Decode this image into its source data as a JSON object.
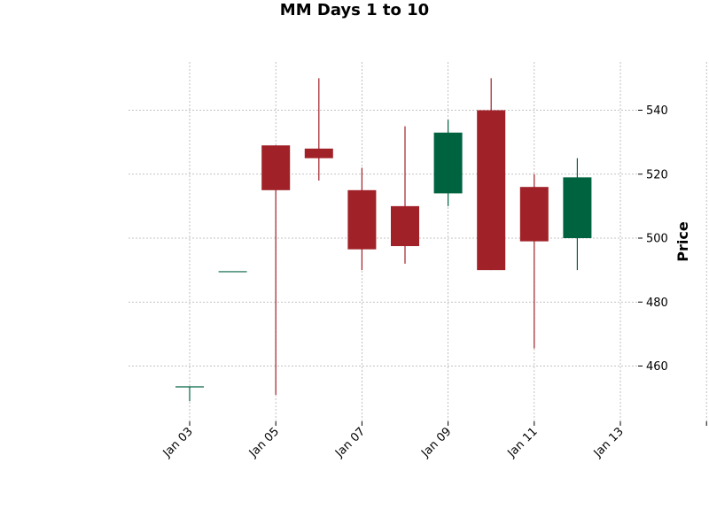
{
  "chart_data": {
    "type": "candlestick",
    "title": "MM Days 1 to 10",
    "xlabel": "",
    "ylabel": "Price",
    "ylim": [
      444,
      555
    ],
    "y_ticks": [
      460,
      480,
      500,
      520,
      540
    ],
    "x_tick_labels": [
      "Jan 03",
      "Jan 05",
      "Jan 07",
      "Jan 09",
      "Jan 11",
      "Jan 13",
      ""
    ],
    "grid": true,
    "colors": {
      "up": "#006340",
      "down": "#a02128",
      "grid": "#b0b0b0"
    },
    "candles": [
      {
        "date": "2024-01-03",
        "open": 453.5,
        "high": 453.5,
        "low": 449,
        "close": 453.5
      },
      {
        "date": "2024-01-04",
        "open": 489.5,
        "high": 489.5,
        "low": 489.5,
        "close": 489.5
      },
      {
        "date": "2024-01-05",
        "open": 529,
        "high": 529,
        "low": 451,
        "close": 515
      },
      {
        "date": "2024-01-06",
        "open": 528,
        "high": 550,
        "low": 518,
        "close": 525
      },
      {
        "date": "2024-01-07",
        "open": 515,
        "high": 522,
        "low": 490,
        "close": 496.5
      },
      {
        "date": "2024-01-08",
        "open": 510,
        "high": 535,
        "low": 492,
        "close": 497.5
      },
      {
        "date": "2024-01-09",
        "open": 514,
        "high": 537,
        "low": 510,
        "close": 533
      },
      {
        "date": "2024-01-10",
        "open": 540,
        "high": 550,
        "low": 490,
        "close": 490
      },
      {
        "date": "2024-01-11",
        "open": 516,
        "high": 520,
        "low": 465.5,
        "close": 499
      },
      {
        "date": "2024-01-12",
        "open": 500,
        "high": 525,
        "low": 490,
        "close": 519
      }
    ]
  }
}
